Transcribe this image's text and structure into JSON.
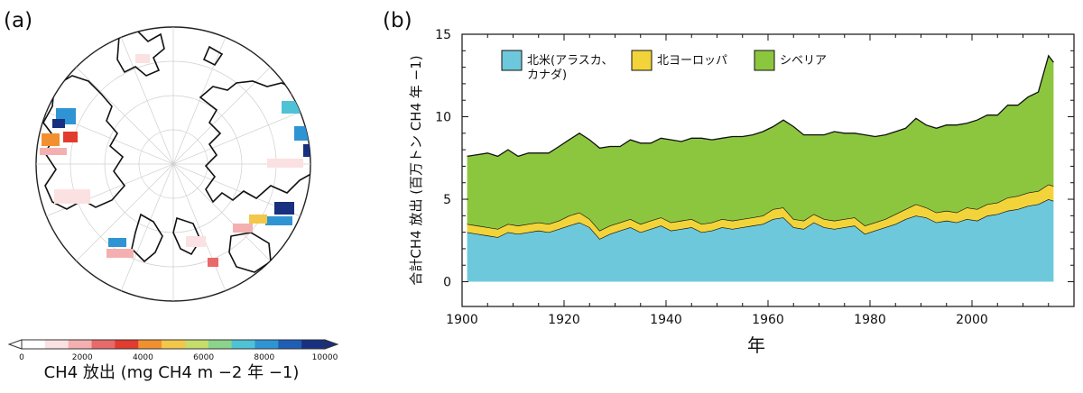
{
  "panel_a": {
    "label": "(a)",
    "colorbar": {
      "ticks": [
        "0",
        "2000",
        "4000",
        "6000",
        "8000",
        "10000"
      ],
      "label": "CH4 放出 (mg CH4 m −2 年 −1)",
      "colors": [
        "#ffffff",
        "#fbe1e1",
        "#f4b0b0",
        "#e86a6a",
        "#e23b2f",
        "#f2902f",
        "#f3c74a",
        "#c7dd6a",
        "#8cd38c",
        "#4fc2d6",
        "#2f94d4",
        "#1f5eb5",
        "#17307f"
      ]
    }
  },
  "panel_b": {
    "label": "(b)",
    "ylabel": "合計CH4 放出 (百万トン CH4 年 −1)",
    "xlabel": "年",
    "legend": [
      {
        "label_lines": [
          "北米(アラスカ、",
          "カナダ)"
        ],
        "color": "#6ec8dc"
      },
      {
        "label_lines": [
          "北ヨーロッパ"
        ],
        "color": "#f2d43a"
      },
      {
        "label_lines": [
          "シベリア"
        ],
        "color": "#8cc63f"
      }
    ]
  },
  "chart_data": {
    "type": "area",
    "stacked": true,
    "title": "",
    "xlabel": "年",
    "ylabel": "合計CH4 放出 (百万トン CH4 年 −1)",
    "xlim": [
      1900,
      2020
    ],
    "ylim": [
      -1.5,
      15
    ],
    "x_ticks": [
      1900,
      1920,
      1940,
      1960,
      1980,
      2000
    ],
    "y_ticks": [
      0,
      5,
      10,
      15
    ],
    "x": [
      1901,
      1903,
      1905,
      1907,
      1909,
      1911,
      1913,
      1915,
      1917,
      1919,
      1921,
      1923,
      1925,
      1927,
      1929,
      1931,
      1933,
      1935,
      1937,
      1939,
      1941,
      1943,
      1945,
      1947,
      1949,
      1951,
      1953,
      1955,
      1957,
      1959,
      1961,
      1963,
      1965,
      1967,
      1969,
      1971,
      1973,
      1975,
      1977,
      1979,
      1981,
      1983,
      1985,
      1987,
      1989,
      1991,
      1993,
      1995,
      1997,
      1999,
      2001,
      2003,
      2005,
      2007,
      2009,
      2011,
      2013,
      2015,
      2016
    ],
    "series": [
      {
        "name": "北米(アラスカ、カナダ)",
        "color": "#6ec8dc",
        "values": [
          3.0,
          2.9,
          2.8,
          2.7,
          3.0,
          2.9,
          3.0,
          3.1,
          3.0,
          3.2,
          3.4,
          3.6,
          3.3,
          2.6,
          2.9,
          3.1,
          3.3,
          3.0,
          3.2,
          3.4,
          3.1,
          3.2,
          3.3,
          3.0,
          3.1,
          3.3,
          3.2,
          3.3,
          3.4,
          3.5,
          3.8,
          3.9,
          3.3,
          3.2,
          3.6,
          3.3,
          3.2,
          3.3,
          3.4,
          2.9,
          3.1,
          3.3,
          3.5,
          3.8,
          4.0,
          3.9,
          3.6,
          3.7,
          3.6,
          3.8,
          3.7,
          4.0,
          4.1,
          4.3,
          4.4,
          4.6,
          4.7,
          5.0,
          4.9
        ]
      },
      {
        "name": "北ヨーロッパ",
        "color": "#f2d43a",
        "values": [
          0.5,
          0.5,
          0.5,
          0.5,
          0.5,
          0.5,
          0.5,
          0.5,
          0.5,
          0.5,
          0.6,
          0.6,
          0.5,
          0.5,
          0.5,
          0.5,
          0.5,
          0.5,
          0.5,
          0.5,
          0.5,
          0.5,
          0.5,
          0.5,
          0.5,
          0.5,
          0.5,
          0.5,
          0.5,
          0.5,
          0.6,
          0.6,
          0.5,
          0.5,
          0.5,
          0.5,
          0.5,
          0.5,
          0.5,
          0.5,
          0.5,
          0.5,
          0.6,
          0.6,
          0.7,
          0.6,
          0.6,
          0.6,
          0.6,
          0.7,
          0.7,
          0.7,
          0.7,
          0.8,
          0.8,
          0.8,
          0.8,
          0.9,
          0.9
        ]
      },
      {
        "name": "シベリア",
        "color": "#8cc63f",
        "values": [
          4.1,
          4.3,
          4.5,
          4.4,
          4.5,
          4.2,
          4.3,
          4.2,
          4.3,
          4.5,
          4.6,
          4.8,
          4.8,
          5.0,
          4.8,
          4.6,
          4.8,
          4.9,
          4.7,
          4.8,
          5.0,
          4.8,
          4.9,
          5.2,
          5.0,
          4.9,
          5.1,
          5.0,
          5.0,
          5.1,
          5.0,
          5.3,
          5.6,
          5.2,
          4.8,
          5.1,
          5.4,
          5.2,
          5.1,
          5.5,
          5.2,
          5.1,
          5.0,
          4.9,
          5.2,
          5.0,
          5.1,
          5.2,
          5.3,
          5.1,
          5.4,
          5.4,
          5.3,
          5.6,
          5.5,
          5.8,
          6.0,
          7.8,
          7.5
        ]
      }
    ]
  }
}
